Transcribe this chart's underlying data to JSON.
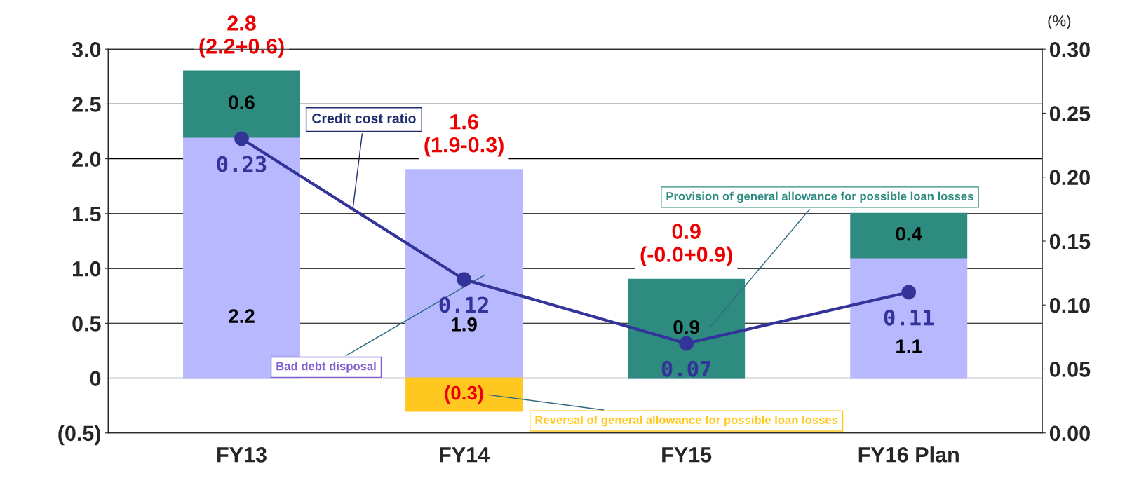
{
  "chart_data": {
    "type": "bar",
    "stacked": true,
    "categories": [
      "FY13",
      "FY14",
      "FY15",
      "FY16 Plan"
    ],
    "series": [
      {
        "name": "Bad debt disposal",
        "color": "#b8b8ff",
        "values": [
          2.2,
          1.9,
          0,
          1.1
        ],
        "value_labels": [
          "2.2",
          "1.9",
          null,
          "1.1"
        ]
      },
      {
        "name": "Provision of general allowance for possible loan losses",
        "color": "#2e8b80",
        "values": [
          0.6,
          null,
          0.9,
          0.4
        ],
        "value_labels": [
          "0.6",
          null,
          "0.9",
          "0.4"
        ]
      },
      {
        "name": "Reversal of general allowance for possible loan losses",
        "color": "#ffc820",
        "values": [
          null,
          -0.3,
          null,
          null
        ],
        "value_labels": [
          null,
          "(0.3)",
          null,
          null
        ]
      },
      {
        "name": "Credit cost ratio",
        "type": "line",
        "axis": "y2",
        "color": "#333399",
        "marker": "circle",
        "values": [
          0.23,
          0.12,
          0.07,
          0.11
        ],
        "value_labels": [
          "0.23",
          "0.12",
          "0.07",
          "0.11"
        ]
      }
    ],
    "totals": [
      "2.8\n(2.2+0.6)",
      "1.6\n(1.9-0.3)",
      "0.9\n(-0.0+0.9)",
      null
    ],
    "ylim": [
      -0.5,
      3.0
    ],
    "yticks": [
      {
        "value": -0.5,
        "label": "(0.5)"
      },
      0,
      0.5,
      {
        "value": 1,
        "label": "1.0"
      },
      1.5,
      {
        "value": 2,
        "label": "2.0"
      },
      2.5,
      {
        "value": 3,
        "label": "3.0"
      }
    ],
    "y2lim": [
      0,
      0.3
    ],
    "y2ticks": [
      {
        "value": 0,
        "label": "0.00"
      },
      0.05,
      {
        "value": 0.1,
        "label": "0.10"
      },
      0.15,
      {
        "value": 0.2,
        "label": "0.20"
      },
      0.25,
      {
        "value": 0.3,
        "label": "0.30"
      }
    ],
    "annotations": [
      "(%)"
    ],
    "grid": "y"
  }
}
